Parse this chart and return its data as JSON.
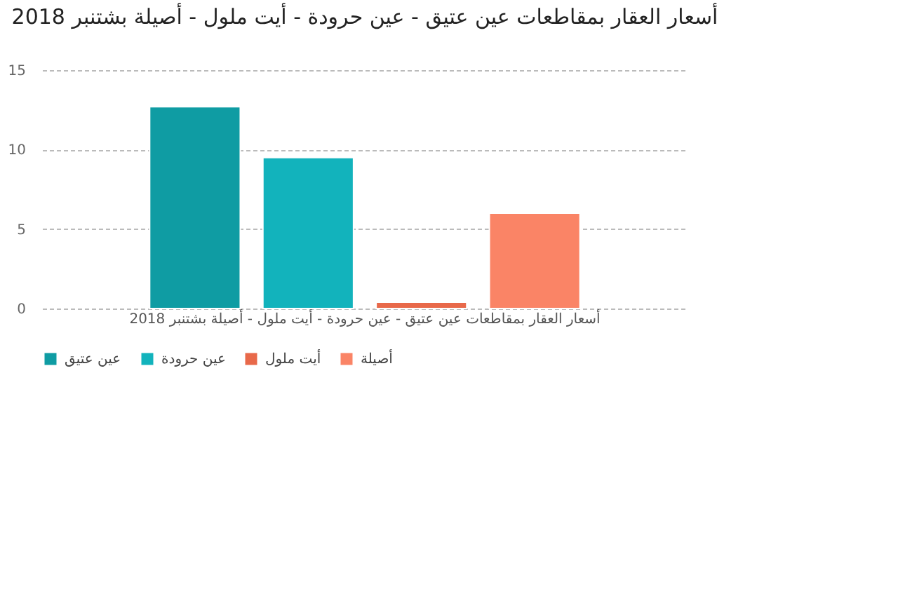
{
  "chart_data": {
    "type": "bar",
    "title": "أسعار العقار بمقاطعات عين عتيق - عين حرودة - أيت ملول - أصيلة بشتنبر 2018",
    "categories": [
      "أسعار العقار بمقاطعات عين عتيق - عين حرودة - أيت ملول - أصيلة بشتنبر 2018"
    ],
    "series": [
      {
        "name": "عين عتيق",
        "color": "#0f9ca3",
        "values": [
          12.7
        ]
      },
      {
        "name": "عين حرودة",
        "color": "#12b3bc",
        "values": [
          9.5
        ]
      },
      {
        "name": "أيت ملول",
        "color": "#e8694a",
        "values": [
          0.4
        ]
      },
      {
        "name": "أصيلة",
        "color": "#fa8466",
        "values": [
          6.0
        ]
      }
    ],
    "ylim": [
      0,
      15
    ],
    "yticks": [
      0,
      5,
      10,
      15
    ],
    "grid": "y",
    "legend": "bottom"
  }
}
